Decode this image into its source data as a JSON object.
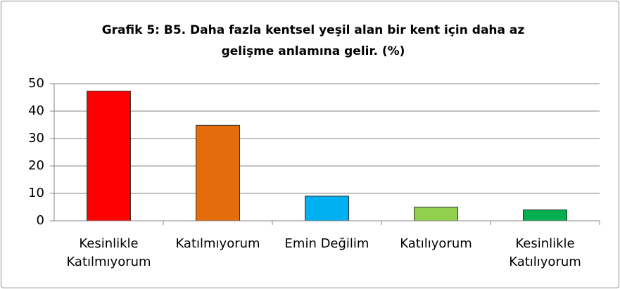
{
  "chart_data": {
    "type": "bar",
    "title": "Grafik 5: B5. Daha fazla kentsel yeşil alan bir kent için daha az gelişme anlamına gelir. (%)",
    "categories": [
      "Kesinlikle Katılmıyorum",
      "Katılmıyorum",
      "Emin Değilim",
      "Katılıyorum",
      "Kesinlikle Katılıyorum"
    ],
    "values": [
      47.3,
      34.8,
      9,
      5,
      4
    ],
    "colors": [
      "#ff0000",
      "#e46c0a",
      "#00b0f0",
      "#92d050",
      "#00b050"
    ],
    "ylim": [
      0,
      50
    ],
    "yticks": [
      0,
      10,
      20,
      30,
      40,
      50
    ],
    "grid": true
  }
}
